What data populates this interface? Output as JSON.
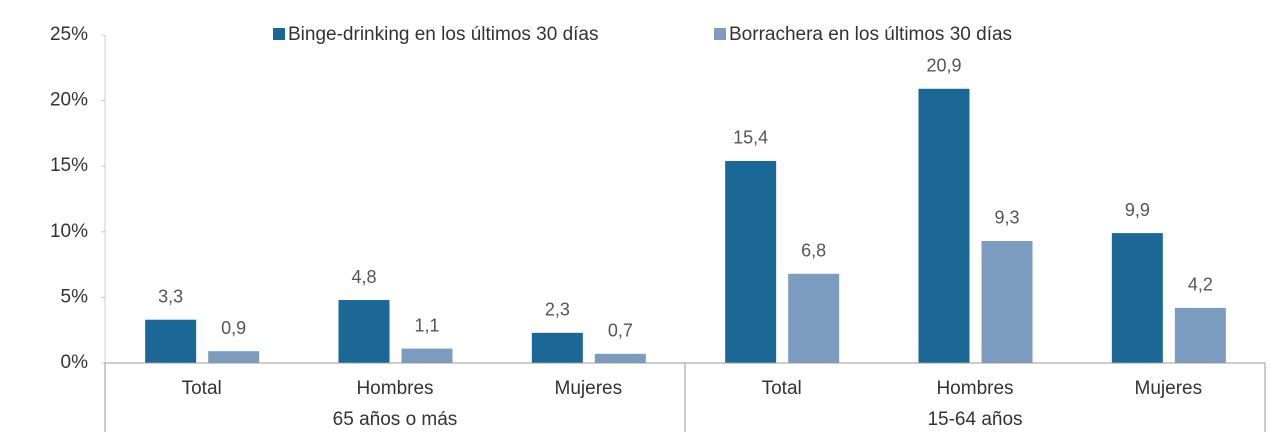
{
  "chart_data": {
    "type": "bar",
    "categories": [
      "Total",
      "Hombres",
      "Mujeres",
      "Total",
      "Hombres",
      "Mujeres"
    ],
    "groups": [
      "65 años o más",
      "15-64 años"
    ],
    "series": [
      {
        "name": "Binge-drinking en los últimos 30 días",
        "color": "#1b6795",
        "values": [
          3.3,
          4.8,
          2.3,
          15.4,
          20.9,
          9.9
        ],
        "value_labels": [
          "3,3",
          "4,8",
          "2,3",
          "15,4",
          "20,9",
          "9,9"
        ]
      },
      {
        "name": "Borrachera en los últimos 30 días",
        "color": "#7b9bbf",
        "values": [
          0.9,
          1.1,
          0.7,
          6.8,
          9.3,
          4.2
        ],
        "value_labels": [
          "0,9",
          "1,1",
          "0,7",
          "6,8",
          "9,3",
          "4,2"
        ]
      }
    ],
    "ylim": [
      0,
      25
    ],
    "yticks": [
      {
        "value": 0,
        "label": "0%"
      },
      {
        "value": 5,
        "label": "5%"
      },
      {
        "value": 10,
        "label": "10%"
      },
      {
        "value": 15,
        "label": "15%"
      },
      {
        "value": 20,
        "label": "20%"
      },
      {
        "value": 25,
        "label": "25%"
      }
    ],
    "legend": "top"
  }
}
